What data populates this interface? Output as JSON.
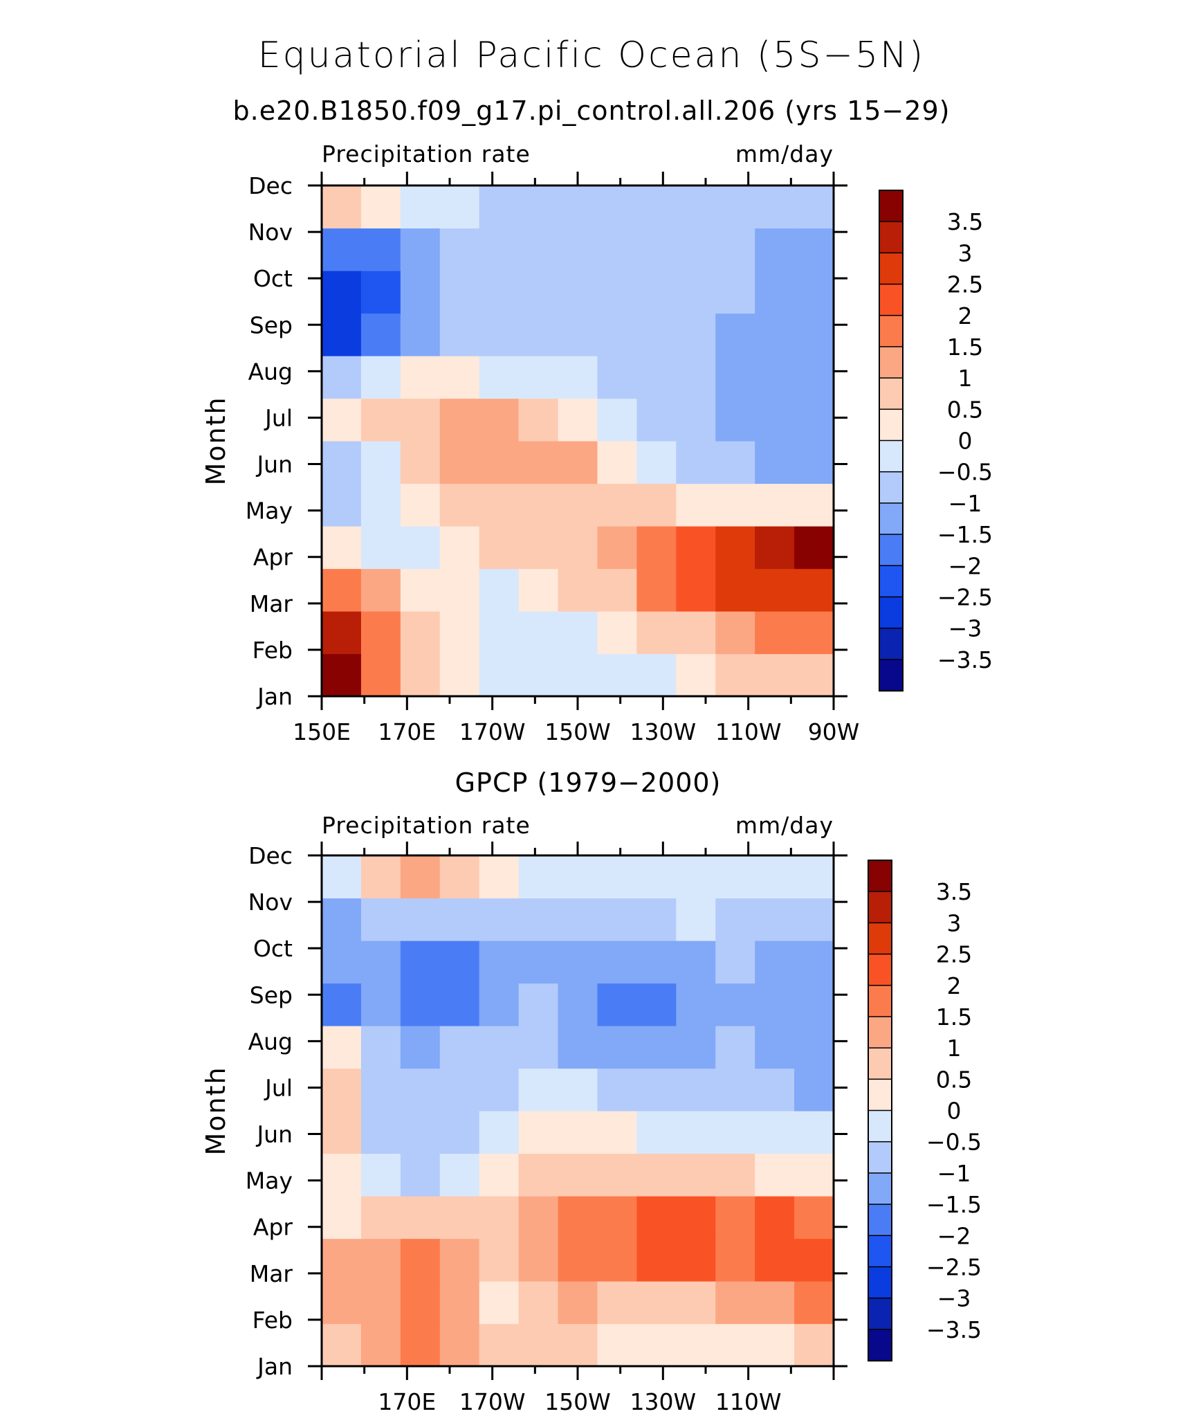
{
  "title": "Equatorial Pacific Ocean (5S−5N)",
  "subtitle": "b.e20.B1850.f09_g17.pi_control.all.206 (yrs 15−29)",
  "chart_data": [
    {
      "type": "heatmap",
      "title": "",
      "left_string": "Precipitation rate",
      "right_string": "mm/day",
      "ylabel": "Month",
      "xlabel": "",
      "x": [
        150,
        160,
        170,
        180,
        190,
        200,
        210,
        220,
        230,
        240,
        250,
        260,
        270
      ],
      "x_tick_labels": [
        "150E",
        "170E",
        "170W",
        "150W",
        "130W",
        "110W",
        "90W"
      ],
      "y": [
        "Jan",
        "Feb",
        "Mar",
        "Apr",
        "May",
        "Jun",
        "Jul",
        "Aug",
        "Sep",
        "Oct",
        "Nov",
        "Dec"
      ],
      "z": [
        [
          3.6,
          1.6,
          0.5,
          0.4,
          -0.1,
          -0.4,
          -0.5,
          -0.3,
          -0.1,
          0.2,
          0.5,
          0.7,
          0.8
        ],
        [
          3.0,
          1.5,
          0.6,
          0.3,
          -0.2,
          -0.3,
          -0.3,
          0.1,
          0.5,
          0.9,
          1.3,
          1.7,
          1.9
        ],
        [
          1.7,
          1.0,
          0.4,
          0.2,
          -0.1,
          0.3,
          0.6,
          0.9,
          1.6,
          2.1,
          2.5,
          2.7,
          2.9
        ],
        [
          0.2,
          -0.3,
          -0.1,
          0.4,
          0.6,
          0.7,
          0.8,
          1.2,
          1.7,
          2.1,
          2.5,
          3.0,
          3.6
        ],
        [
          -0.8,
          -0.4,
          0.2,
          0.6,
          0.8,
          0.8,
          0.7,
          0.6,
          0.5,
          0.3,
          0.2,
          0.2,
          0.2
        ],
        [
          -0.6,
          -0.2,
          0.6,
          1.0,
          1.3,
          1.3,
          1.1,
          0.3,
          -0.4,
          -0.8,
          -1.0,
          -1.1,
          -1.1
        ],
        [
          0.4,
          0.7,
          0.9,
          1.2,
          1.2,
          0.8,
          0.3,
          -0.3,
          -0.6,
          -0.9,
          -1.1,
          -1.3,
          -1.4
        ],
        [
          -0.8,
          -0.2,
          0.1,
          0.2,
          -0.1,
          -0.3,
          -0.5,
          -0.7,
          -0.8,
          -1.0,
          -1.2,
          -1.3,
          -1.4
        ],
        [
          -2.6,
          -1.6,
          -1.3,
          -1.0,
          -0.9,
          -0.9,
          -0.9,
          -1.0,
          -1.0,
          -1.0,
          -1.2,
          -1.4,
          -1.5
        ],
        [
          -2.8,
          -2.2,
          -1.5,
          -1.0,
          -0.9,
          -0.9,
          -0.9,
          -0.9,
          -0.9,
          -0.9,
          -1.0,
          -1.4,
          -1.5
        ],
        [
          -1.9,
          -1.7,
          -1.3,
          -1.0,
          -0.9,
          -0.9,
          -0.9,
          -0.9,
          -0.9,
          -0.9,
          -1.0,
          -1.2,
          -1.2
        ],
        [
          0.6,
          0.3,
          -0.1,
          -0.4,
          -0.6,
          -0.7,
          -0.7,
          -0.7,
          -0.7,
          -0.7,
          -0.8,
          -0.9,
          -0.9
        ]
      ]
    },
    {
      "type": "heatmap",
      "title": "GPCP (1979−2000)",
      "left_string": "Precipitation rate",
      "right_string": "mm/day",
      "ylabel": "Month",
      "xlabel": "",
      "x": [
        150,
        160,
        170,
        180,
        190,
        200,
        210,
        220,
        230,
        240,
        250,
        260,
        270
      ],
      "x_tick_labels": [
        "",
        "170E",
        "170W",
        "150W",
        "130W",
        "110W",
        ""
      ],
      "y": [
        "Jan",
        "Feb",
        "Mar",
        "Apr",
        "May",
        "Jun",
        "Jul",
        "Aug",
        "Sep",
        "Oct",
        "Nov",
        "Dec"
      ],
      "z": [
        [
          0.8,
          1.3,
          1.7,
          1.4,
          0.7,
          0.5,
          0.5,
          0.3,
          0.2,
          0.2,
          0.2,
          0.3,
          0.6
        ],
        [
          1.2,
          1.4,
          1.7,
          1.3,
          0.4,
          0.9,
          1.1,
          0.9,
          0.8,
          0.9,
          1.0,
          1.2,
          1.5
        ],
        [
          1.1,
          1.3,
          1.5,
          1.1,
          0.6,
          1.3,
          1.8,
          1.8,
          2.0,
          2.0,
          1.8,
          2.0,
          2.0
        ],
        [
          0.3,
          0.7,
          0.9,
          0.6,
          0.8,
          1.3,
          1.7,
          1.9,
          2.1,
          2.1,
          1.8,
          2.0,
          1.8
        ],
        [
          0.2,
          -0.4,
          -0.6,
          -0.5,
          0.2,
          0.7,
          0.9,
          0.8,
          0.7,
          0.6,
          0.5,
          0.4,
          0.3
        ],
        [
          0.6,
          -0.6,
          -0.9,
          -0.7,
          -0.3,
          0.1,
          0.2,
          0.1,
          -0.1,
          -0.3,
          -0.4,
          -0.5,
          -0.5
        ],
        [
          0.7,
          -0.6,
          -0.9,
          -0.8,
          -0.7,
          -0.5,
          -0.5,
          -0.6,
          -0.7,
          -0.8,
          -0.9,
          -1.0,
          -1.2
        ],
        [
          0.3,
          -0.8,
          -1.1,
          -0.9,
          -0.9,
          -1.0,
          -1.3,
          -1.5,
          -1.5,
          -1.4,
          -1.0,
          -1.3,
          -1.5
        ],
        [
          -1.6,
          -1.2,
          -1.9,
          -2.0,
          -1.3,
          -1.0,
          -1.4,
          -1.6,
          -1.6,
          -1.5,
          -1.1,
          -1.4,
          -1.5
        ],
        [
          -1.3,
          -1.3,
          -1.6,
          -1.8,
          -1.4,
          -1.1,
          -1.3,
          -1.5,
          -1.5,
          -1.3,
          -0.9,
          -1.2,
          -1.4
        ],
        [
          -1.1,
          -0.8,
          -0.7,
          -0.8,
          -0.8,
          -0.6,
          -0.7,
          -0.7,
          -0.6,
          -0.5,
          -0.6,
          -0.8,
          -0.9
        ],
        [
          -0.4,
          0.6,
          1.3,
          0.8,
          0.3,
          -0.3,
          -0.4,
          -0.2,
          -0.3,
          -0.3,
          -0.3,
          -0.2,
          -0.2
        ]
      ]
    }
  ],
  "colorbar": {
    "levels": [
      -4,
      -3.5,
      -3,
      -2.5,
      -2,
      -1.5,
      -1,
      -0.5,
      0,
      0.5,
      1,
      1.5,
      2,
      2.5,
      3,
      3.5,
      4
    ],
    "labels": [
      "3.5",
      "3",
      "2.5",
      "2",
      "1.5",
      "1",
      "0.5",
      "0",
      "−0.5",
      "−1",
      "−1.5",
      "−2",
      "−2.5",
      "−3",
      "−3.5"
    ],
    "colors": [
      "#08088c",
      "#0a23b0",
      "#0b3ce0",
      "#1f56f2",
      "#4a7df5",
      "#82a8f8",
      "#b3cbfa",
      "#d8e8fc",
      "#fee9da",
      "#fdcbb2",
      "#fca784",
      "#fc7b4d",
      "#f95325",
      "#df3a0a",
      "#b81f06",
      "#880202"
    ]
  }
}
